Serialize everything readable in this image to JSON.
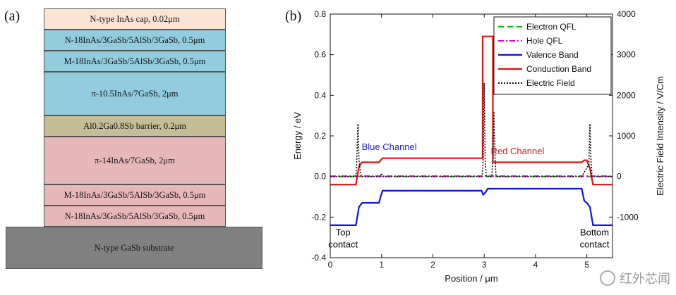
{
  "panel_a": {
    "label": "(a)",
    "layers": [
      {
        "text": "N-type InAs cap, 0.02μm",
        "color": "#fce4d4"
      },
      {
        "text": "N-18InAs/3GaSb/5AlSb/3GaSb, 0.5μm",
        "color": "#93cddd"
      },
      {
        "text": "M-18InAs/3GaSb/5AlSb/3GaSb, 0.5μm",
        "color": "#93cddd"
      },
      {
        "text": "π-10.5InAs/7GaSb, 2μm",
        "color": "#93cddd"
      },
      {
        "text": "Al0.2Ga0.8Sb barrier, 0.2μm",
        "color": "#c4bd97"
      },
      {
        "text": "π-14InAs/7GaSb, 2μm",
        "color": "#e6b9b8"
      },
      {
        "text": "M-18InAs/3GaSb/5AlSb/3GaSb, 0.5μm",
        "color": "#e6b9b8"
      },
      {
        "text": "N-18InAs/3GaSb/5AlSb/3GaSb, 0.5μm",
        "color": "#e6b9b8"
      },
      {
        "text": "N-type GaSb substrate",
        "color": "#808080"
      }
    ]
  },
  "panel_b": {
    "label": "(b)",
    "chart_data": {
      "type": "line",
      "xlabel": "Position / μm",
      "ylabel": "Energy / eV",
      "y2label": "Electric Field Intensity / V/Cm",
      "xlim": [
        0,
        5.5
      ],
      "ylim": [
        -0.4,
        0.8
      ],
      "y2lim": [
        -2000,
        4000
      ],
      "xticks": [
        0,
        1,
        2,
        3,
        4,
        5
      ],
      "yticks": [
        -0.4,
        -0.2,
        0.0,
        0.2,
        0.4,
        0.6,
        0.8
      ],
      "y2ticks": [
        -1000,
        0,
        1000,
        2000,
        3000,
        4000
      ],
      "legend_position": "top-right",
      "annotations": [
        {
          "text": "Blue Channel",
          "x": 1.15,
          "y": 0.13,
          "color": "#1f1fd0"
        },
        {
          "text": "Red Channel",
          "x": 3.65,
          "y": 0.11,
          "color": "#d01f1f"
        },
        {
          "text": "Top",
          "x": 0.25,
          "y": -0.29,
          "color": "#000000"
        },
        {
          "text": "contact",
          "x": 0.25,
          "y": -0.35,
          "color": "#000000"
        },
        {
          "text": "Bottom",
          "x": 5.15,
          "y": -0.29,
          "color": "#000000"
        },
        {
          "text": "contact",
          "x": 5.15,
          "y": -0.35,
          "color": "#000000"
        }
      ],
      "series": [
        {
          "name": "Electron QFL",
          "color": "#00c000",
          "style": "dashed",
          "axis": "left",
          "x": [
            0,
            5.5
          ],
          "y": [
            0.0,
            0.0
          ]
        },
        {
          "name": "Hole QFL",
          "color": "#e000e0",
          "style": "dashdot",
          "axis": "left",
          "x": [
            0,
            5.5
          ],
          "y": [
            0.002,
            0.002
          ]
        },
        {
          "name": "Valence Band",
          "color": "#1010e0",
          "style": "solid",
          "axis": "left",
          "x": [
            0,
            0.5,
            0.56,
            0.62,
            0.95,
            0.98,
            1.02,
            2.95,
            2.98,
            3.02,
            3.07,
            3.12,
            4.9,
            4.95,
            5.0,
            5.06,
            5.12,
            5.5
          ],
          "y": [
            -0.24,
            -0.24,
            -0.15,
            -0.13,
            -0.13,
            -0.1,
            -0.07,
            -0.07,
            -0.09,
            -0.08,
            -0.06,
            -0.06,
            -0.06,
            -0.12,
            -0.13,
            -0.15,
            -0.24,
            -0.24
          ]
        },
        {
          "name": "Conduction Band",
          "color": "#e01010",
          "style": "solid",
          "axis": "left",
          "x": [
            0,
            0.5,
            0.56,
            0.62,
            0.95,
            0.98,
            1.02,
            2.95,
            2.97,
            2.97,
            3.17,
            3.17,
            3.19,
            4.9,
            4.95,
            5.0,
            5.06,
            5.12,
            5.5
          ],
          "y": [
            -0.04,
            -0.04,
            0.05,
            0.07,
            0.07,
            0.08,
            0.09,
            0.09,
            0.09,
            0.69,
            0.69,
            0.07,
            0.07,
            0.07,
            0.08,
            0.08,
            0.04,
            -0.04,
            -0.04
          ]
        },
        {
          "name": "Electric Field",
          "color": "#111111",
          "style": "dotted",
          "axis": "right",
          "x": [
            0,
            0.5,
            0.52,
            0.54,
            0.56,
            0.6,
            0.98,
            1.0,
            1.02,
            2.96,
            2.98,
            3.0,
            3.02,
            3.04,
            3.15,
            3.17,
            3.19,
            3.21,
            3.23,
            4.9,
            5.04,
            5.06,
            5.08,
            5.1,
            5.5
          ],
          "y": [
            0,
            0,
            500,
            1300,
            400,
            0,
            0,
            80,
            0,
            0,
            400,
            2300,
            400,
            0,
            0,
            500,
            1600,
            500,
            0,
            0,
            300,
            1300,
            400,
            0,
            0
          ]
        }
      ]
    }
  },
  "watermark": {
    "text": "红外芯闻",
    "icon": "wechat-icon"
  }
}
